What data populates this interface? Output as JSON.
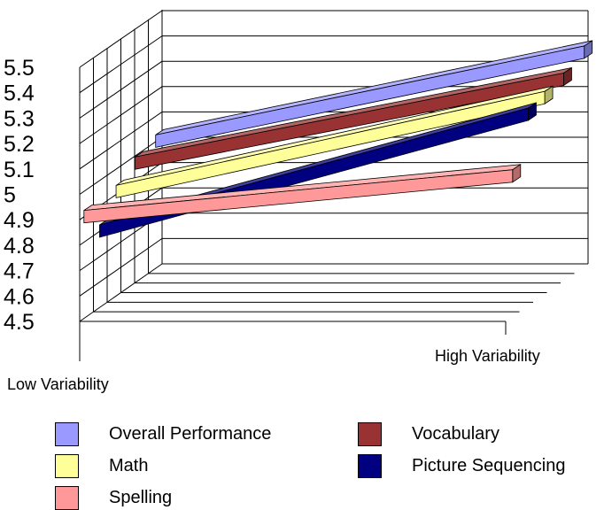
{
  "chart_data": {
    "type": "line",
    "style": "3d-ribbon",
    "categories": [
      "Low Variability",
      "High Variability"
    ],
    "ylim": [
      4.5,
      5.5
    ],
    "yticks": [
      "4.5",
      "4.6",
      "4.7",
      "4.8",
      "4.9",
      "5",
      "5.1",
      "5.2",
      "5.3",
      "5.4",
      "5.5"
    ],
    "grid": true,
    "legend_position": "bottom",
    "series": [
      {
        "name": "Overall Performance",
        "values": [
          5.03,
          5.38
        ],
        "color": "#9999ff"
      },
      {
        "name": "Vocabulary",
        "values": [
          5.0,
          5.33
        ],
        "color": "#993333"
      },
      {
        "name": "Math",
        "values": [
          4.94,
          5.31
        ],
        "color": "#ffff99"
      },
      {
        "name": "Picture Sequencing",
        "values": [
          4.83,
          5.29
        ],
        "color": "#000080"
      },
      {
        "name": "Spelling",
        "values": [
          4.93,
          5.09
        ],
        "color": "#ff9999"
      }
    ]
  }
}
